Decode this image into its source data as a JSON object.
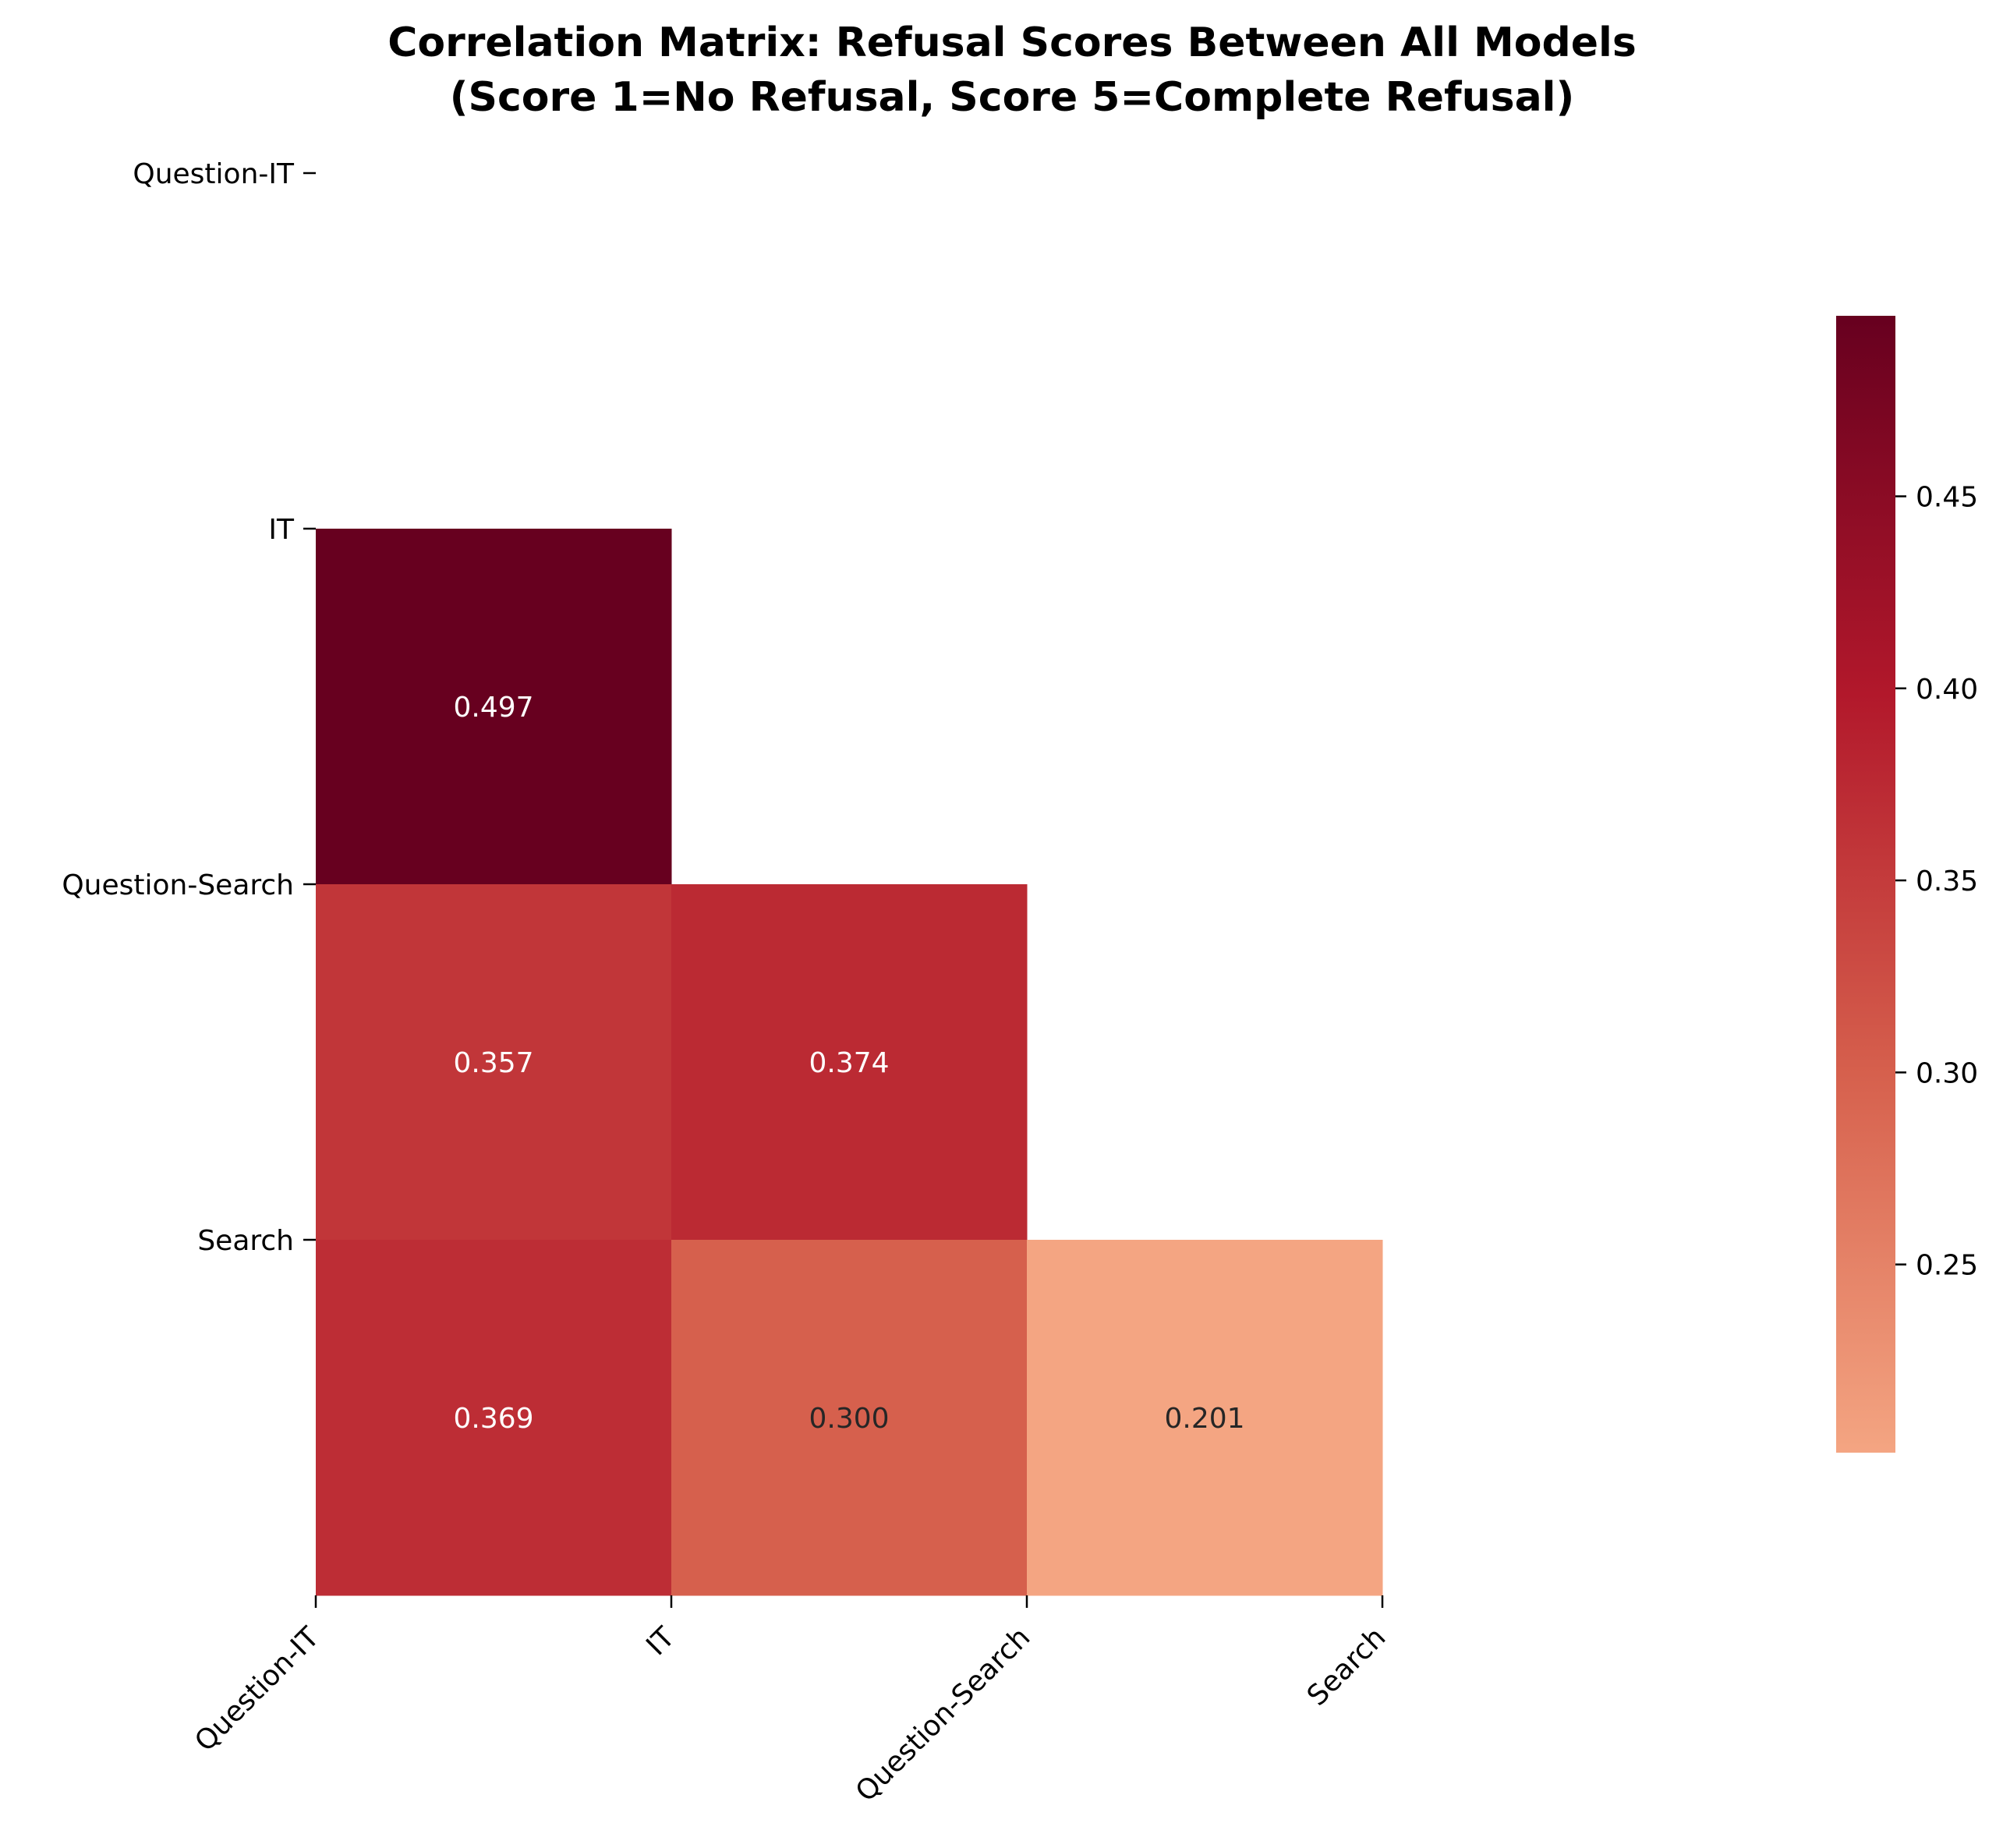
{
  "chart_data": {
    "type": "heatmap",
    "title": "Correlation Matrix: Refusal Scores Between All Models",
    "subtitle": "(Score 1=No Refusal, Score 5=Complete Refusal)",
    "x_categories": [
      "Question-IT",
      "IT",
      "Question-Search",
      "Search"
    ],
    "y_categories": [
      "Question-IT",
      "IT",
      "Question-Search",
      "Search"
    ],
    "mask": "upper-triangle",
    "cells": [
      {
        "row": "IT",
        "col": "Question-IT",
        "value": 0.497,
        "label": "0.497"
      },
      {
        "row": "Question-Search",
        "col": "Question-IT",
        "value": 0.357,
        "label": "0.357"
      },
      {
        "row": "Question-Search",
        "col": "IT",
        "value": 0.374,
        "label": "0.374"
      },
      {
        "row": "Search",
        "col": "Question-IT",
        "value": 0.369,
        "label": "0.369"
      },
      {
        "row": "Search",
        "col": "IT",
        "value": 0.3,
        "label": "0.300"
      },
      {
        "row": "Search",
        "col": "Question-Search",
        "value": 0.201,
        "label": "0.201"
      }
    ],
    "colorbar": {
      "range": [
        0.201,
        0.497
      ],
      "ticks": [
        0.25,
        0.3,
        0.35,
        0.4,
        0.45
      ],
      "tick_labels": [
        "0.25",
        "0.30",
        "0.35",
        "0.40",
        "0.45"
      ],
      "colormap": "RdBu_r (red half)",
      "color_stops": [
        "#f4a582",
        "#d6604d",
        "#b2182b",
        "#67001f"
      ]
    }
  }
}
